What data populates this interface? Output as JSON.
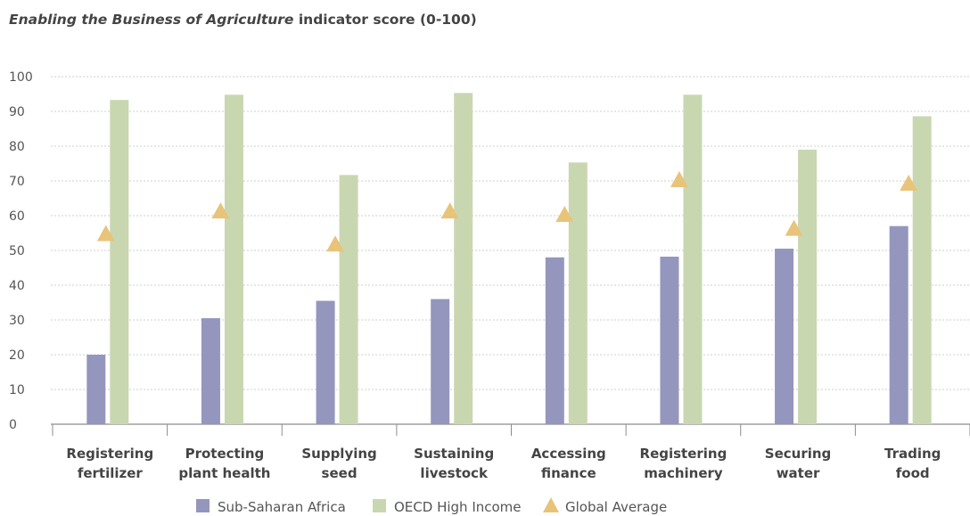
{
  "chart_data": {
    "type": "bar",
    "title_italic": "Enabling the Business of Agriculture",
    "title_rest": " indicator score (0-100)",
    "categories": [
      [
        "Registering",
        "fertilizer"
      ],
      [
        "Protecting",
        "plant health"
      ],
      [
        "Supplying",
        "seed"
      ],
      [
        "Sustaining",
        "livestock"
      ],
      [
        "Accessing",
        "finance"
      ],
      [
        "Registering",
        "machinery"
      ],
      [
        "Securing",
        "water"
      ],
      [
        "Trading",
        "food"
      ]
    ],
    "series": [
      {
        "name": "Sub-Saharan Africa",
        "kind": "bar",
        "color": "#9496bd",
        "values": [
          20.0,
          30.5,
          35.5,
          36.0,
          48.0,
          48.2,
          50.5,
          57.0
        ]
      },
      {
        "name": "OECD High Income",
        "kind": "bar",
        "color": "#c9d7b1",
        "values": [
          93.3,
          94.8,
          71.7,
          95.3,
          75.3,
          94.8,
          79.0,
          88.6
        ]
      },
      {
        "name": "Global Average",
        "kind": "marker",
        "color": "#e8c37a",
        "values": [
          55.0,
          61.5,
          52.0,
          61.5,
          60.5,
          70.5,
          56.5,
          69.5
        ]
      }
    ],
    "ylim": [
      0,
      100
    ],
    "yticks": [
      0,
      10,
      20,
      30,
      40,
      50,
      60,
      70,
      80,
      90,
      100
    ],
    "grid": true,
    "legend_position": "bottom-center"
  }
}
